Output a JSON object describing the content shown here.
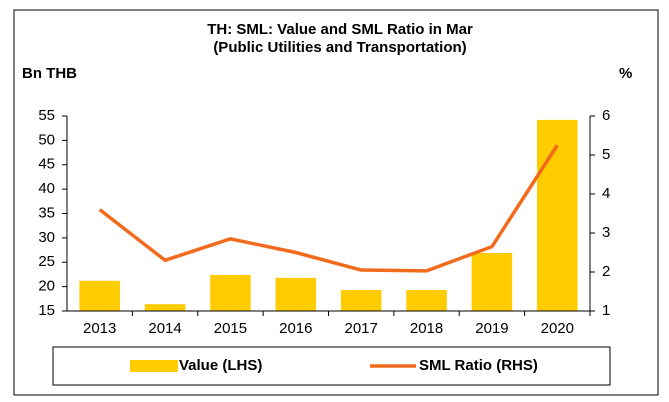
{
  "chart_data": {
    "type": "bar_line",
    "title": "TH: SML: Value and SML Ratio in Mar",
    "subtitle": "(Public Utilities and Transportation)",
    "y_label": "Bn THB",
    "y2_label": "%",
    "categories": [
      "2013",
      "2014",
      "2015",
      "2016",
      "2017",
      "2018",
      "2019",
      "2020"
    ],
    "series": [
      {
        "name": "Value (LHS)",
        "type": "bar",
        "color": "#ffcc00",
        "values": [
          21.2,
          16.4,
          22.4,
          21.8,
          19.3,
          19.3,
          26.9,
          54.2
        ]
      },
      {
        "name": "SML Ratio (RHS)",
        "type": "line",
        "axis": "y2",
        "color": "#f26b1d",
        "values": [
          3.6,
          2.3,
          2.85,
          2.5,
          2.05,
          2.03,
          2.65,
          5.25
        ]
      }
    ],
    "ylim": [
      15,
      55
    ],
    "yticks": [
      15,
      20,
      25,
      30,
      35,
      40,
      45,
      50,
      55
    ],
    "y2lim": [
      1,
      6
    ],
    "y2ticks": [
      1,
      2,
      3,
      4,
      5,
      6
    ],
    "grid": false,
    "legend": "bottom"
  }
}
